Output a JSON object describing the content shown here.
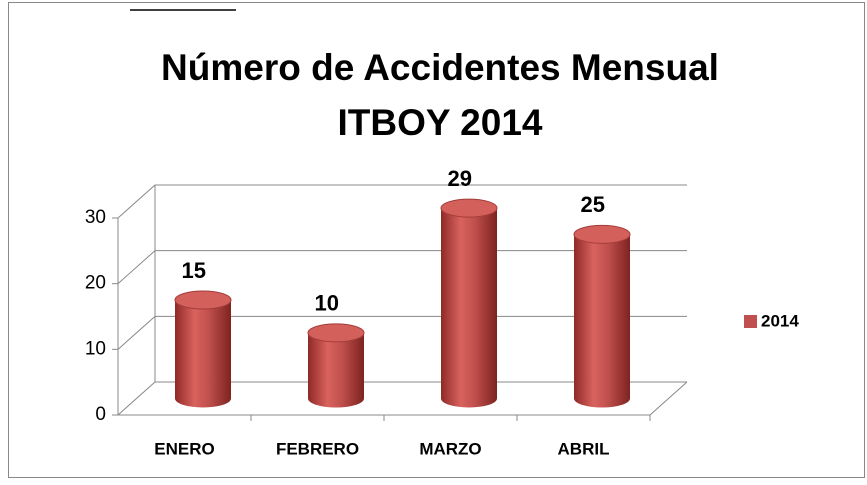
{
  "chart_data": {
    "type": "bar3d",
    "title": [
      "Número de Accidentes Mensual",
      "ITBOY 2014"
    ],
    "categories": [
      "ENERO",
      "FEBRERO",
      "MARZO",
      "ABRIL"
    ],
    "series": [
      {
        "name": "2014",
        "color": "#c0504d",
        "values": [
          15,
          10,
          29,
          25
        ]
      }
    ],
    "ylim": [
      0,
      30
    ],
    "yticks": [
      0,
      10,
      20,
      30
    ],
    "grid": true,
    "legend": "right"
  }
}
